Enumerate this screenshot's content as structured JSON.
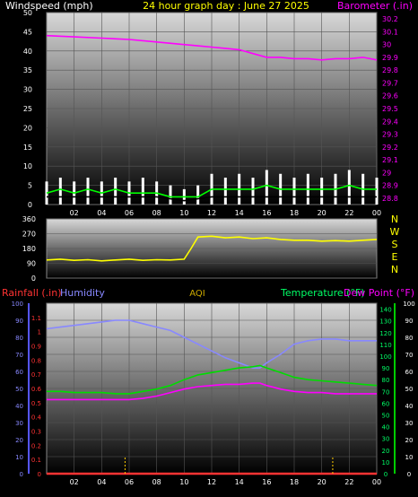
{
  "chart_data": [
    {
      "type": "line",
      "title": "24 hour graph day : June 27 2025",
      "left_axis_label": "Windspeed (mph)",
      "right_axis_label": "Barometer (.in)",
      "x_tick_labels": [
        "02",
        "04",
        "06",
        "08",
        "10",
        "12",
        "14",
        "16",
        "18",
        "20",
        "22",
        "00"
      ],
      "left_ticks": [
        0,
        5,
        10,
        15,
        20,
        25,
        30,
        35,
        40,
        45,
        50
      ],
      "right_ticks": [
        "28.8",
        "28.9",
        "29",
        "29.1",
        "29.2",
        "29.3",
        "29.4",
        "29.5",
        "29.6",
        "29.7",
        "29.8",
        "29.9",
        "30",
        "30.1",
        "30.2"
      ],
      "ylim_left": [
        0,
        50
      ],
      "ylim_right": [
        28.75,
        30.25
      ],
      "x_range_hours": [
        0,
        24
      ],
      "series": [
        {
          "axis": "right",
          "color": "#ff00ff",
          "x": [
            0,
            2,
            4,
            6,
            8,
            10,
            11,
            12,
            13,
            14,
            15,
            16,
            17,
            18,
            19,
            20,
            21,
            22,
            23,
            24
          ],
          "y": [
            30.07,
            30.06,
            30.05,
            30.04,
            30.02,
            30.0,
            29.99,
            29.98,
            29.97,
            29.96,
            29.93,
            29.9,
            29.9,
            29.89,
            29.89,
            29.88,
            29.89,
            29.89,
            29.9,
            29.88
          ]
        },
        {
          "axis": "left",
          "color": "#ffffff",
          "type": "bars",
          "x": [
            0,
            1,
            2,
            3,
            4,
            5,
            6,
            7,
            8,
            9,
            10,
            11,
            12,
            13,
            14,
            15,
            16,
            17,
            18,
            19,
            20,
            21,
            22,
            23,
            24
          ],
          "y": [
            6,
            7,
            6,
            7,
            6,
            7,
            6,
            7,
            6,
            5,
            4,
            5,
            8,
            7,
            8,
            7,
            9,
            8,
            7,
            8,
            7,
            8,
            9,
            8,
            7
          ]
        },
        {
          "axis": "left",
          "color": "#00ff00",
          "x": [
            0,
            1,
            2,
            3,
            4,
            5,
            6,
            7,
            8,
            9,
            10,
            11,
            12,
            13,
            14,
            15,
            16,
            17,
            18,
            19,
            20,
            21,
            22,
            23,
            24
          ],
          "y": [
            3,
            4,
            3,
            4,
            3,
            4,
            3,
            3,
            3,
            2,
            2,
            2,
            4,
            4,
            4,
            4,
            5,
            4,
            4,
            4,
            4,
            4,
            5,
            4,
            4
          ]
        },
        {
          "axis": "left",
          "color": "#000000",
          "x": [
            0,
            2,
            4,
            6,
            8,
            10,
            12,
            14,
            16,
            18,
            20,
            22,
            24
          ],
          "y": [
            2,
            2,
            2,
            2,
            2,
            1,
            2,
            2,
            2,
            2,
            2,
            2,
            2
          ]
        }
      ]
    },
    {
      "type": "line",
      "title": "",
      "left_ticks": [
        0,
        90,
        180,
        270,
        360
      ],
      "right_labels": [
        "N",
        "W",
        "S",
        "E",
        "N"
      ],
      "ylim": [
        0,
        360
      ],
      "x_range_hours": [
        0,
        24
      ],
      "series": [
        {
          "color": "#ffff00",
          "x": [
            0,
            1,
            2,
            3,
            4,
            5,
            6,
            7,
            8,
            9,
            10,
            10.5,
            11,
            12,
            13,
            14,
            15,
            16,
            17,
            18,
            19,
            20,
            21,
            22,
            23,
            24
          ],
          "y": [
            110,
            115,
            108,
            112,
            105,
            110,
            115,
            108,
            112,
            110,
            115,
            180,
            250,
            255,
            245,
            250,
            240,
            245,
            235,
            230,
            230,
            225,
            228,
            225,
            230,
            235
          ]
        }
      ]
    },
    {
      "type": "line",
      "header": {
        "rainfall": "Rainfall (.in)",
        "humidity": "Humidity",
        "aqi": "AQI",
        "temperature": "Temperature (°F)",
        "dewpoint": "Dew Point (°F)"
      },
      "x_tick_labels": [
        "02",
        "04",
        "06",
        "08",
        "10",
        "12",
        "14",
        "16",
        "18",
        "20",
        "22",
        "00"
      ],
      "humidity_ticks": [
        0,
        10,
        20,
        30,
        40,
        50,
        60,
        70,
        80,
        90,
        100
      ],
      "rain_ticks": [
        "0",
        "0.1",
        "0.2",
        "0.3",
        "0.4",
        "0.5",
        "0.6",
        "0.7",
        "0.8",
        "0.9",
        "1",
        "1.1"
      ],
      "temp_ticks_right": [
        0,
        10,
        20,
        30,
        40,
        50,
        60,
        70,
        80,
        90,
        100,
        110,
        120,
        130,
        140
      ],
      "temp_ticks_right2": [
        0,
        10,
        20,
        30,
        40,
        50,
        60,
        70,
        80,
        90,
        100
      ],
      "ylim_humidity": [
        0,
        100
      ],
      "ylim_temp": [
        0,
        145
      ],
      "x_range_hours": [
        0,
        24
      ],
      "series": [
        {
          "name": "Humidity",
          "color": "#8888ff",
          "x": [
            0,
            1,
            2,
            3,
            4,
            5,
            6,
            7,
            8,
            9,
            10,
            11,
            12,
            13,
            14,
            15,
            15.5,
            16,
            17,
            18,
            19,
            20,
            21,
            22,
            23,
            24
          ],
          "y": [
            85,
            86,
            87,
            88,
            89,
            90,
            90,
            88,
            86,
            84,
            80,
            76,
            72,
            68,
            65,
            62,
            62,
            65,
            70,
            76,
            78,
            79,
            79,
            78,
            78,
            78
          ]
        },
        {
          "name": "Temperature",
          "color": "#00dd00",
          "x": [
            0,
            1,
            2,
            3,
            4,
            5,
            6,
            7,
            8,
            9,
            10,
            11,
            12,
            13,
            14,
            15,
            15.5,
            16,
            17,
            18,
            19,
            20,
            21,
            22,
            23,
            24
          ],
          "y": [
            70,
            70,
            69,
            69,
            69,
            68,
            68,
            70,
            72,
            75,
            80,
            84,
            86,
            88,
            90,
            91,
            92,
            90,
            86,
            82,
            80,
            79,
            78,
            77,
            76,
            75
          ]
        },
        {
          "name": "Dew Point",
          "color": "#ff00ff",
          "x": [
            0,
            1,
            2,
            3,
            4,
            5,
            6,
            7,
            8,
            9,
            10,
            11,
            12,
            13,
            14,
            15,
            15.5,
            16,
            17,
            18,
            19,
            20,
            21,
            22,
            23,
            24
          ],
          "y": [
            63,
            63,
            63,
            63,
            63,
            63,
            63,
            64,
            66,
            69,
            72,
            74,
            75,
            76,
            76,
            77,
            77,
            75,
            72,
            70,
            69,
            69,
            68,
            68,
            68,
            68
          ]
        },
        {
          "name": "Rainfall",
          "color": "#ff3333",
          "x": [
            0,
            24
          ],
          "y": [
            0,
            0
          ]
        }
      ],
      "marker_hours": [
        5.7,
        20.8
      ],
      "marker_color": "#ffcc00"
    }
  ]
}
